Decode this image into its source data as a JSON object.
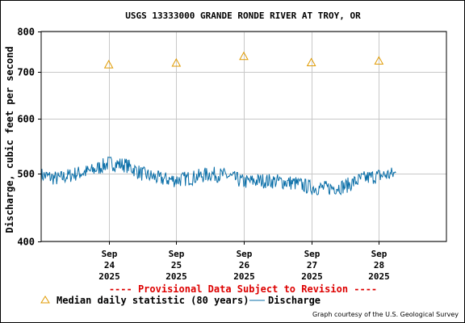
{
  "chart_data": {
    "type": "line",
    "title": "USGS 13333000 GRANDE RONDE RIVER AT TROY, OR",
    "ylabel": "Discharge, cubic feet per second",
    "xlabel": "",
    "y_scale": "log",
    "ylim": [
      400,
      800
    ],
    "y_ticks": [
      {
        "value": 400,
        "label": "400"
      },
      {
        "value": 500,
        "label": "500"
      },
      {
        "value": 600,
        "label": "600"
      },
      {
        "value": 700,
        "label": "700"
      },
      {
        "value": 800,
        "label": "800"
      }
    ],
    "xlim": [
      "2025-09-23T00:00",
      "2025-09-29T00:00"
    ],
    "x_ticks": [
      {
        "value": "2025-09-24T00:00",
        "line1": "Sep",
        "line2": "24",
        "line3": "2025"
      },
      {
        "value": "2025-09-25T00:00",
        "line1": "Sep",
        "line2": "25",
        "line3": "2025"
      },
      {
        "value": "2025-09-26T00:00",
        "line1": "Sep",
        "line2": "26",
        "line3": "2025"
      },
      {
        "value": "2025-09-27T00:00",
        "line1": "Sep",
        "line2": "27",
        "line3": "2025"
      },
      {
        "value": "2025-09-28T00:00",
        "line1": "Sep",
        "line2": "28",
        "line3": "2025"
      }
    ],
    "grid": true,
    "series": [
      {
        "name": "Discharge",
        "color": "#0b6fa8",
        "x": [
          "2025-09-23T00:00",
          "2025-09-23T06:00",
          "2025-09-23T12:00",
          "2025-09-23T18:00",
          "2025-09-24T00:00",
          "2025-09-24T06:00",
          "2025-09-24T12:00",
          "2025-09-24T18:00",
          "2025-09-25T00:00",
          "2025-09-25T06:00",
          "2025-09-25T12:00",
          "2025-09-25T18:00",
          "2025-09-26T00:00",
          "2025-09-26T06:00",
          "2025-09-26T12:00",
          "2025-09-26T18:00",
          "2025-09-27T00:00",
          "2025-09-27T06:00",
          "2025-09-27T12:00",
          "2025-09-27T18:00",
          "2025-09-28T00:00",
          "2025-09-28T06:00"
        ],
        "y": [
          498,
          492,
          500,
          505,
          518,
          515,
          500,
          492,
          490,
          494,
          500,
          497,
          487,
          489,
          488,
          485,
          478,
          477,
          480,
          492,
          497,
          500
        ]
      },
      {
        "name": "Median daily statistic (80 years)",
        "color": "#e09a00",
        "marker": "triangle",
        "x": [
          "2025-09-24T00:00",
          "2025-09-25T00:00",
          "2025-09-26T00:00",
          "2025-09-27T00:00",
          "2025-09-28T00:00"
        ],
        "y": [
          717,
          721,
          737,
          722,
          726
        ]
      }
    ]
  },
  "provisional_note": "---- Provisional Data Subject to Revision ----",
  "provisional_color": "#dd0000",
  "legend": {
    "median_label": "Median daily statistic (80 years)",
    "discharge_label": "Discharge"
  },
  "credit": "Graph courtesy of the U.S. Geological Survey"
}
